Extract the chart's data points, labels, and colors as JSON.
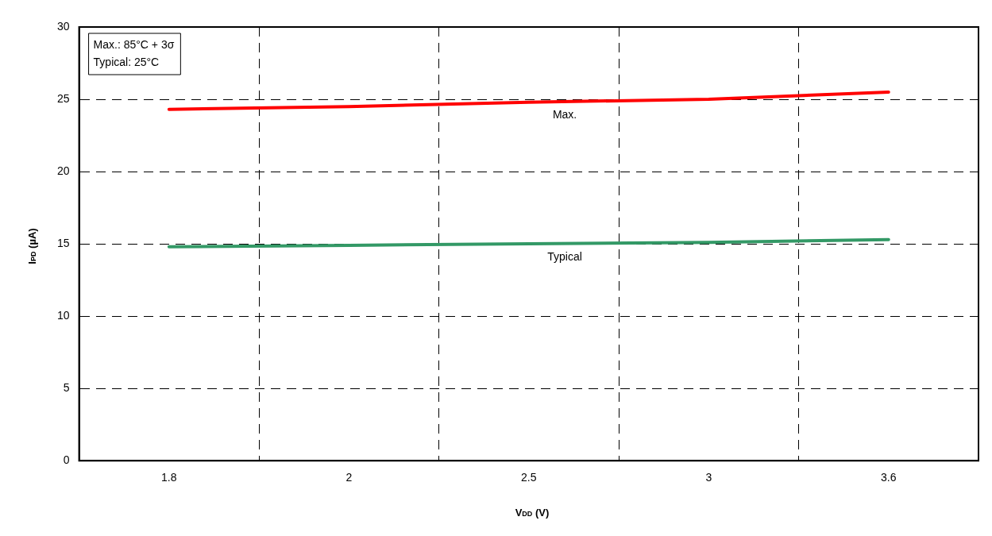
{
  "chart_data": {
    "type": "line",
    "xlabel": "V$_{DD}$ (V)",
    "ylabel": "I$_{PD}$ (µA)",
    "categories": [
      "1.8",
      "2",
      "2.5",
      "3",
      "3.6"
    ],
    "series": [
      {
        "name": "Max.",
        "color": "#ff0000",
        "values": [
          24.3,
          24.5,
          24.8,
          25.0,
          25.5
        ]
      },
      {
        "name": "Typical",
        "color": "#339966",
        "values": [
          14.8,
          14.9,
          15.0,
          15.1,
          15.3
        ]
      }
    ],
    "ylim": [
      0,
      30
    ],
    "yticks": [
      0,
      5,
      10,
      15,
      20,
      25,
      30
    ],
    "grid": true,
    "legend": false,
    "marker": "none",
    "line_style": "solid",
    "annotations": [
      "Max.: 85°C + 3σ",
      "Typical: 25°C"
    ]
  }
}
